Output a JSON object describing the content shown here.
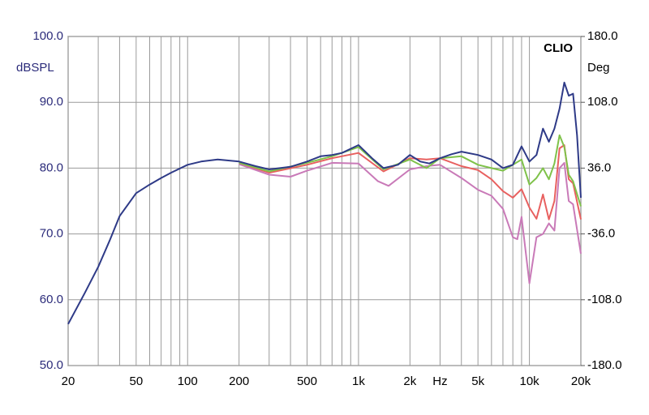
{
  "chart_data": {
    "type": "line",
    "annotation": "CLIO",
    "ylabel": "dBSPL",
    "y2label": "Deg",
    "xscale": "log",
    "grid": true,
    "xlim": [
      20,
      20000
    ],
    "ylim": [
      50,
      100
    ],
    "y2lim": [
      -180,
      180
    ],
    "xticks": [
      20,
      50,
      100,
      200,
      500,
      {
        "value": 1000,
        "label": "1k"
      },
      {
        "value": 2000,
        "label": "2k"
      },
      {
        "value": 3000,
        "label": "Hz"
      },
      {
        "value": 5000,
        "label": "5k"
      },
      {
        "value": 10000,
        "label": "10k"
      },
      {
        "value": 20000,
        "label": "20k"
      }
    ],
    "xgrid": [
      30,
      40,
      60,
      70,
      80,
      90,
      300,
      400,
      600,
      700,
      800,
      900,
      4000,
      6000,
      7000,
      8000,
      9000
    ],
    "yticks": [
      {
        "value": 50,
        "label": "50.0"
      },
      {
        "value": 60,
        "label": "60.0"
      },
      {
        "value": 70,
        "label": "70.0"
      },
      {
        "value": 80,
        "label": "80.0"
      },
      {
        "value": 90,
        "label": "90.0"
      },
      {
        "value": 100,
        "label": "100.0"
      }
    ],
    "y2ticks": [
      {
        "value": -180,
        "label": "-180.0"
      },
      {
        "value": -108,
        "label": "-108.0"
      },
      {
        "value": -36,
        "label": "-36.0"
      },
      {
        "value": 36,
        "label": "36.0"
      },
      {
        "value": 108,
        "label": "108.0"
      },
      {
        "value": 180,
        "label": "180.0"
      }
    ],
    "series": [
      {
        "color": "#2e3a87",
        "x": [
          20,
          25,
          30,
          35,
          40,
          50,
          60,
          70,
          80,
          100,
          120,
          150,
          200,
          250,
          300,
          400,
          500,
          600,
          700,
          800,
          1000,
          1200,
          1400,
          1700,
          2000,
          2300,
          2600,
          3000,
          3500,
          4000,
          5000,
          6000,
          7000,
          8000,
          9000,
          10000,
          11000,
          12000,
          13000,
          14000,
          15000,
          16000,
          17000,
          18000,
          19000,
          20000
        ],
        "values": [
          56.3,
          61,
          65,
          69,
          72.7,
          76.2,
          77.5,
          78.5,
          79.3,
          80.5,
          81,
          81.3,
          81,
          80.3,
          79.8,
          80.2,
          81,
          81.8,
          82,
          82.3,
          83.5,
          81.5,
          80,
          80.5,
          82,
          81,
          80.7,
          81.5,
          82.1,
          82.5,
          82,
          81.3,
          80,
          80.5,
          83.3,
          81,
          82,
          86,
          84,
          86,
          89,
          93,
          91,
          91.3,
          85,
          75.5
        ]
      },
      {
        "color": "#7fc24a",
        "x": [
          200,
          300,
          500,
          700,
          1000,
          1400,
          2000,
          2500,
          3000,
          4000,
          5000,
          6000,
          7000,
          8000,
          9000,
          10000,
          11000,
          12000,
          13000,
          14000,
          15000,
          16000,
          17000,
          18000,
          20000
        ],
        "values": [
          80.8,
          79.5,
          80.8,
          81.8,
          83.2,
          79.8,
          81.3,
          80,
          81.5,
          81.8,
          80.5,
          80,
          79.6,
          80.5,
          81.3,
          77.5,
          78.5,
          80,
          78.3,
          80.7,
          85,
          83.2,
          79,
          78,
          74.2
        ]
      },
      {
        "color": "#e8605f",
        "x": [
          200,
          300,
          500,
          700,
          1000,
          1400,
          2000,
          2500,
          3000,
          4000,
          5000,
          6000,
          7000,
          8000,
          9000,
          10000,
          11000,
          12000,
          13000,
          14000,
          15000,
          16000,
          17000,
          18000,
          20000
        ],
        "values": [
          80.8,
          79.3,
          80.5,
          81.5,
          82.3,
          79.5,
          81.5,
          81.3,
          81.5,
          80.3,
          79.7,
          78.3,
          76.5,
          75.5,
          76.8,
          74,
          72.3,
          76,
          72.2,
          75,
          83,
          83.5,
          78.3,
          77.7,
          72.2
        ]
      },
      {
        "color": "#c97ab8",
        "x": [
          200,
          300,
          400,
          500,
          700,
          1000,
          1300,
          1500,
          2000,
          2500,
          3000,
          4000,
          5000,
          6000,
          7000,
          8000,
          8500,
          9000,
          10000,
          11000,
          12000,
          13000,
          14000,
          15000,
          16000,
          17000,
          18000,
          20000
        ],
        "values": [
          80.6,
          79,
          78.7,
          79.6,
          80.8,
          80.7,
          78,
          77.3,
          79.8,
          80.3,
          80.5,
          78.5,
          76.7,
          75.8,
          73.8,
          69.5,
          69.2,
          72.6,
          62.5,
          69.5,
          70,
          71.6,
          70.5,
          80,
          80.8,
          75,
          74.5,
          67
        ]
      }
    ]
  }
}
